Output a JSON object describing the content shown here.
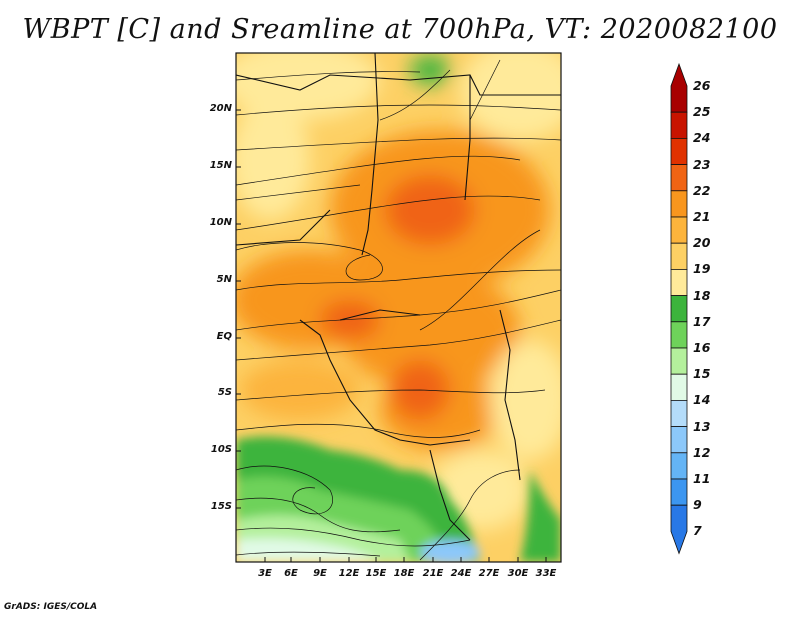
{
  "title": "WBPT [C] and Sreamline at 700hPa, VT: 2020082100",
  "footer": "GrADS: IGES/COLA",
  "map": {
    "lat_labels": [
      "20N",
      "15N",
      "10N",
      "5N",
      "EQ",
      "5S",
      "10S",
      "15S"
    ],
    "lon_labels": [
      "3E",
      "6E",
      "9E",
      "12E",
      "15E",
      "18E",
      "21E",
      "24E",
      "27E",
      "30E",
      "33E"
    ]
  },
  "colorbar": {
    "labels": [
      "26",
      "25",
      "24",
      "23",
      "22",
      "21",
      "20",
      "19",
      "18",
      "17",
      "16",
      "15",
      "14",
      "13",
      "12",
      "11",
      "9",
      "7"
    ],
    "colors": [
      "#a80000",
      "#c81400",
      "#e03200",
      "#f06414",
      "#f8961e",
      "#fcb43c",
      "#fdd064",
      "#ffea9a",
      "#3cb43c",
      "#6ed25a",
      "#b4f09c",
      "#e1fae6",
      "#b4dcfa",
      "#8cc8fa",
      "#64b4f5",
      "#3c96f0",
      "#2878e6"
    ]
  }
}
